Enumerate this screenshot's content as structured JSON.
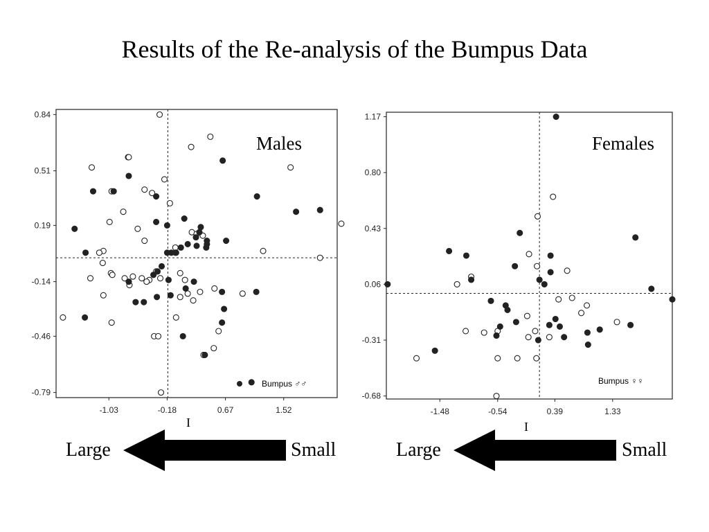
{
  "slide": {
    "title": "Results of the Re-analysis of the Bumpus Data"
  },
  "colors": {
    "ink": "#222222",
    "paper": "#ffffff",
    "arrow": "#000000"
  },
  "chart_data": [
    {
      "type": "scatter",
      "panel_label": "Males",
      "legend": "Bumpus ♂♂",
      "xlabel": "I",
      "ylabel": "",
      "xticks": [
        "-1.03",
        "-0.18",
        "0.67",
        "1.52"
      ],
      "yticks": [
        "0.84",
        "0.51",
        "0.19",
        "-0.14",
        "-0.46",
        "-0.79"
      ],
      "xlim": [
        -1.8,
        2.3
      ],
      "ylim": [
        -0.82,
        0.87
      ],
      "reference_lines": {
        "x": -0.17,
        "y": 0.0
      },
      "legend_position": "bottom-right",
      "series": [
        {
          "marker": "open",
          "points": [
            [
              -0.29,
              0.84
            ],
            [
              0.45,
              0.71
            ],
            [
              0.17,
              0.65
            ],
            [
              -0.75,
              0.59
            ],
            [
              -0.74,
              0.59
            ],
            [
              -1.28,
              0.53
            ],
            [
              1.62,
              0.53
            ],
            [
              -0.99,
              0.39
            ],
            [
              -0.51,
              0.4
            ],
            [
              -0.22,
              0.46
            ],
            [
              -0.4,
              0.38
            ],
            [
              -0.14,
              0.32
            ],
            [
              -0.82,
              0.27
            ],
            [
              -1.02,
              0.21
            ],
            [
              -0.61,
              0.17
            ],
            [
              -0.51,
              0.1
            ],
            [
              0.18,
              0.15
            ],
            [
              0.25,
              0.14
            ],
            [
              0.34,
              0.13
            ],
            [
              -0.06,
              0.06
            ],
            [
              -0.06,
              0.03
            ],
            [
              -1.11,
              0.04
            ],
            [
              -1.17,
              0.03
            ],
            [
              -1.12,
              -0.03
            ],
            [
              1.22,
              0.04
            ],
            [
              2.05,
              0.0
            ],
            [
              2.36,
              0.2
            ],
            [
              -1.3,
              -0.12
            ],
            [
              -1.0,
              -0.09
            ],
            [
              -0.98,
              -0.1
            ],
            [
              -0.68,
              -0.11
            ],
            [
              -0.8,
              -0.12
            ],
            [
              -0.55,
              -0.12
            ],
            [
              -0.44,
              -0.13
            ],
            [
              -0.48,
              -0.14
            ],
            [
              -0.73,
              -0.16
            ],
            [
              -1.11,
              -0.22
            ],
            [
              -0.34,
              -0.08
            ],
            [
              -0.28,
              -0.12
            ],
            [
              0.01,
              -0.09
            ],
            [
              0.08,
              -0.13
            ],
            [
              0.3,
              -0.2
            ],
            [
              0.92,
              -0.21
            ],
            [
              0.12,
              -0.21
            ],
            [
              0.01,
              -0.23
            ],
            [
              0.51,
              -0.18
            ],
            [
              0.2,
              -0.25
            ],
            [
              -1.7,
              -0.35
            ],
            [
              -0.99,
              -0.38
            ],
            [
              -0.05,
              -0.35
            ],
            [
              0.57,
              -0.43
            ],
            [
              -0.37,
              -0.46
            ],
            [
              -0.31,
              -0.46
            ],
            [
              0.35,
              -0.57
            ],
            [
              0.5,
              -0.53
            ],
            [
              -0.27,
              -0.79
            ]
          ]
        },
        {
          "marker": "filled",
          "points": [
            [
              0.63,
              0.57
            ],
            [
              -0.74,
              0.48
            ],
            [
              -0.96,
              0.39
            ],
            [
              -1.26,
              0.39
            ],
            [
              -0.34,
              0.36
            ],
            [
              1.13,
              0.36
            ],
            [
              1.7,
              0.27
            ],
            [
              0.07,
              0.23
            ],
            [
              -0.34,
              0.21
            ],
            [
              -0.18,
              0.19
            ],
            [
              0.31,
              0.18
            ],
            [
              -1.53,
              0.17
            ],
            [
              0.29,
              0.15
            ],
            [
              0.24,
              0.12
            ],
            [
              0.4,
              0.1
            ],
            [
              0.12,
              0.08
            ],
            [
              0.68,
              0.1
            ],
            [
              0.4,
              0.08
            ],
            [
              0.25,
              0.07
            ],
            [
              0.02,
              0.06
            ],
            [
              0.39,
              0.06
            ],
            [
              -0.05,
              0.03
            ],
            [
              -1.37,
              0.03
            ],
            [
              -0.18,
              0.03
            ],
            [
              -0.12,
              0.03
            ],
            [
              -0.26,
              -0.05
            ],
            [
              -0.32,
              -0.08
            ],
            [
              -0.38,
              -0.1
            ],
            [
              -0.16,
              -0.13
            ],
            [
              -0.74,
              -0.14
            ],
            [
              0.21,
              -0.14
            ],
            [
              0.09,
              -0.18
            ],
            [
              0.62,
              -0.2
            ],
            [
              -0.13,
              -0.22
            ],
            [
              1.12,
              -0.2
            ],
            [
              -0.33,
              -0.23
            ],
            [
              -0.64,
              -0.26
            ],
            [
              -0.52,
              -0.26
            ],
            [
              -1.38,
              -0.35
            ],
            [
              0.05,
              -0.46
            ],
            [
              0.62,
              -0.38
            ],
            [
              0.37,
              -0.57
            ],
            [
              0.65,
              -0.3
            ],
            [
              1.05,
              -0.73
            ],
            [
              2.05,
              0.28
            ]
          ]
        }
      ]
    },
    {
      "type": "scatter",
      "panel_label": "Females",
      "legend": "Bumpus ♀♀",
      "xlabel": "I",
      "ylabel": "",
      "xticks": [
        "-1.48",
        "-0.54",
        "0.39",
        "1.33"
      ],
      "yticks": [
        "1.17",
        "0.80",
        "0.43",
        "0.06",
        "-0.31",
        "-0.68"
      ],
      "xlim": [
        -2.35,
        2.3
      ],
      "ylim": [
        -0.7,
        1.2
      ],
      "reference_lines": {
        "x": 0.14,
        "y": 0.0
      },
      "legend_position": "bottom-right",
      "series": [
        {
          "marker": "open",
          "points": [
            [
              0.36,
              0.64
            ],
            [
              0.11,
              0.51
            ],
            [
              -0.03,
              0.26
            ],
            [
              0.1,
              0.18
            ],
            [
              -0.97,
              0.11
            ],
            [
              0.59,
              0.15
            ],
            [
              -1.2,
              0.06
            ],
            [
              0.45,
              -0.04
            ],
            [
              0.67,
              -0.03
            ],
            [
              0.91,
              -0.08
            ],
            [
              -0.06,
              -0.15
            ],
            [
              0.07,
              -0.25
            ],
            [
              0.82,
              -0.13
            ],
            [
              -1.06,
              -0.25
            ],
            [
              -0.76,
              -0.26
            ],
            [
              -0.54,
              -0.25
            ],
            [
              -0.04,
              -0.29
            ],
            [
              0.3,
              -0.29
            ],
            [
              1.4,
              -0.19
            ],
            [
              -1.86,
              -0.43
            ],
            [
              -0.54,
              -0.43
            ],
            [
              -0.22,
              -0.43
            ],
            [
              0.09,
              -0.43
            ],
            [
              -0.56,
              -0.68
            ]
          ]
        },
        {
          "marker": "filled",
          "points": [
            [
              0.41,
              1.17
            ],
            [
              -0.18,
              0.4
            ],
            [
              1.7,
              0.37
            ],
            [
              -1.33,
              0.28
            ],
            [
              -1.05,
              0.25
            ],
            [
              -0.97,
              0.09
            ],
            [
              -0.26,
              0.18
            ],
            [
              0.32,
              0.25
            ],
            [
              0.32,
              0.14
            ],
            [
              0.14,
              0.09
            ],
            [
              0.22,
              0.06
            ],
            [
              1.96,
              0.03
            ],
            [
              2.3,
              -0.04
            ],
            [
              -2.33,
              0.06
            ],
            [
              -0.65,
              -0.05
            ],
            [
              -0.41,
              -0.08
            ],
            [
              -0.38,
              -0.11
            ],
            [
              -0.5,
              -0.22
            ],
            [
              -0.24,
              -0.19
            ],
            [
              0.4,
              -0.17
            ],
            [
              0.47,
              -0.22
            ],
            [
              -0.56,
              -0.28
            ],
            [
              -1.56,
              -0.38
            ],
            [
              0.54,
              -0.29
            ],
            [
              0.92,
              -0.26
            ],
            [
              1.12,
              -0.24
            ],
            [
              1.62,
              -0.21
            ],
            [
              0.93,
              -0.34
            ],
            [
              0.3,
              -0.21
            ],
            [
              0.12,
              -0.31
            ]
          ]
        }
      ]
    }
  ],
  "arrows": [
    {
      "left_label": "Large",
      "right_label": "Small"
    },
    {
      "left_label": "Large",
      "right_label": "Small"
    }
  ]
}
